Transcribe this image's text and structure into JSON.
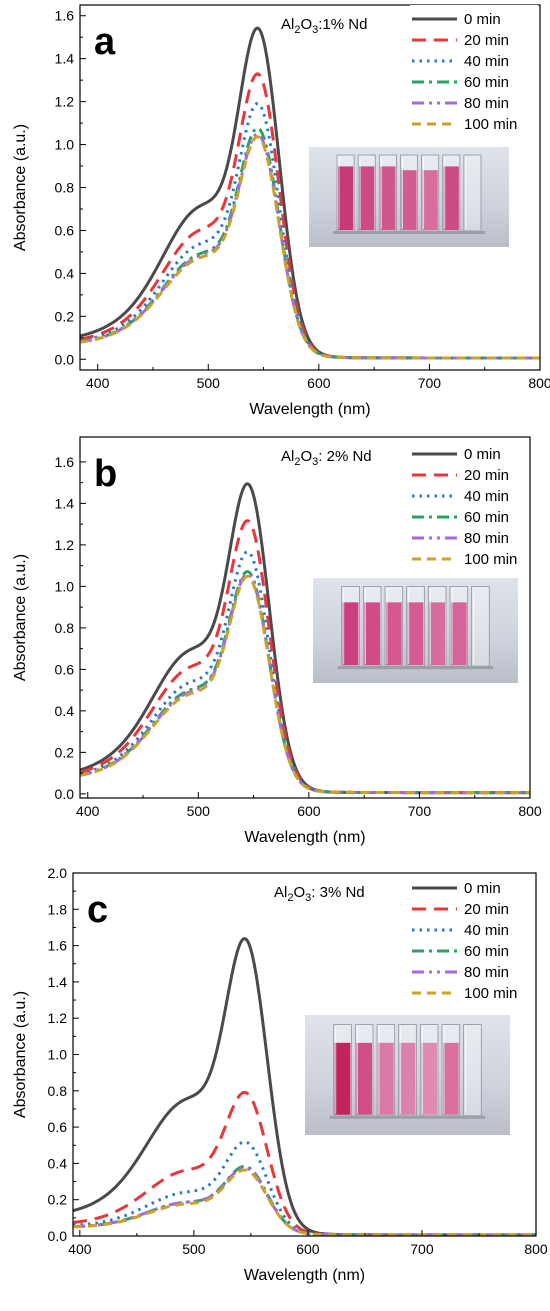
{
  "chart_data": [
    {
      "type": "line",
      "panel_label": "a",
      "title": "Al2O3:1% Nd",
      "title_parts": {
        "pre": "Al",
        "sub1": "2",
        "mid": "O",
        "sub2": "3",
        "post": ":1% Nd"
      },
      "xlabel": "Wavelength (nm)",
      "ylabel": "Absorbance (a.u.)",
      "xlim": [
        384,
        800
      ],
      "ylim": [
        -0.05,
        1.65
      ],
      "xticks": [
        400,
        500,
        600,
        700,
        800
      ],
      "yticks": [
        0.0,
        0.2,
        0.4,
        0.6,
        0.8,
        1.0,
        1.2,
        1.4,
        1.6
      ],
      "ytick_format": 1,
      "legend_position": "top-right",
      "series": [
        {
          "name": "0 min",
          "peak": 1.56,
          "shoulder": 0.76,
          "base": 0.035
        },
        {
          "name": "20 min",
          "peak": 1.35,
          "shoulder": 0.64,
          "base": 0.03
        },
        {
          "name": "40 min",
          "peak": 1.21,
          "shoulder": 0.57,
          "base": 0.03
        },
        {
          "name": "60 min",
          "peak": 1.09,
          "shoulder": 0.52,
          "base": 0.03
        },
        {
          "name": "80 min",
          "peak": 1.06,
          "shoulder": 0.51,
          "base": 0.03
        },
        {
          "name": "100 min",
          "peak": 1.05,
          "shoulder": 0.5,
          "base": 0.03
        }
      ]
    },
    {
      "type": "line",
      "panel_label": "b",
      "title": "Al2O3: 2% Nd",
      "title_parts": {
        "pre": "Al",
        "sub1": "2",
        "mid": "O",
        "sub2": "3",
        "post": ": 2% Nd"
      },
      "xlabel": "Wavelength (nm)",
      "ylabel": "Absorbance (a.u.)",
      "xlim": [
        393,
        800
      ],
      "ylim": [
        -0.02,
        1.72
      ],
      "xticks": [
        400,
        500,
        600,
        700,
        800
      ],
      "yticks": [
        0.0,
        0.2,
        0.4,
        0.6,
        0.8,
        1.0,
        1.2,
        1.4,
        1.6
      ],
      "ytick_format": 1,
      "legend_position": "top-right",
      "series": [
        {
          "name": "0 min",
          "peak": 1.51,
          "shoulder": 0.74,
          "base": 0.03
        },
        {
          "name": "20 min",
          "peak": 1.33,
          "shoulder": 0.65,
          "base": 0.03
        },
        {
          "name": "40 min",
          "peak": 1.18,
          "shoulder": 0.57,
          "base": 0.03
        },
        {
          "name": "60 min",
          "peak": 1.08,
          "shoulder": 0.53,
          "base": 0.03
        },
        {
          "name": "80 min",
          "peak": 1.07,
          "shoulder": 0.52,
          "base": 0.03
        },
        {
          "name": "100 min",
          "peak": 1.06,
          "shoulder": 0.51,
          "base": 0.03
        }
      ]
    },
    {
      "type": "line",
      "panel_label": "c",
      "title": "Al2O3: 3% Nd",
      "title_parts": {
        "pre": "Al",
        "sub1": "2",
        "mid": "O",
        "sub2": "3",
        "post": ": 3% Nd"
      },
      "xlabel": "Wavelength (nm)",
      "ylabel": "Absorbance (a.u.)",
      "xlim": [
        394,
        800
      ],
      "ylim": [
        0.0,
        2.0
      ],
      "xticks": [
        400,
        500,
        600,
        700,
        800
      ],
      "yticks": [
        0.0,
        0.2,
        0.4,
        0.6,
        0.8,
        1.0,
        1.2,
        1.4,
        1.6,
        1.8,
        2.0
      ],
      "ytick_format": 1,
      "legend_position": "top-right",
      "series": [
        {
          "name": "0 min",
          "peak": 1.66,
          "shoulder": 0.8,
          "base": 0.05
        },
        {
          "name": "20 min",
          "peak": 0.8,
          "shoulder": 0.38,
          "base": 0.03
        },
        {
          "name": "40 min",
          "peak": 0.52,
          "shoulder": 0.25,
          "base": 0.03
        },
        {
          "name": "60 min",
          "peak": 0.38,
          "shoulder": 0.19,
          "base": 0.03
        },
        {
          "name": "80 min",
          "peak": 0.37,
          "shoulder": 0.19,
          "base": 0.03
        },
        {
          "name": "100 min",
          "peak": 0.36,
          "shoulder": 0.18,
          "base": 0.03
        }
      ]
    }
  ],
  "series_styles": [
    {
      "color": "#4a4a4a",
      "dash": "none",
      "width": 3.0
    },
    {
      "color": "#e8363a",
      "dash": "14,8",
      "width": 3.0
    },
    {
      "color": "#2a78c8",
      "dash": "2.5,5",
      "width": 3.0
    },
    {
      "color": "#27a263",
      "dash": "12,5,3,5",
      "width": 3.0
    },
    {
      "color": "#a66ad8",
      "dash": "12,5,3,5,3,5",
      "width": 3.0
    },
    {
      "color": "#c9a227",
      "dash": "9,6",
      "width": 3.0
    }
  ],
  "cuvette_photos": [
    {
      "liquid_colors": [
        "#c73a78",
        "#cc4a86",
        "#d0578c",
        "#d25c92",
        "#d66d9c",
        "#cc4a86",
        "#f1f1f3"
      ],
      "levels": [
        0.5,
        0.5,
        0.5,
        0.55,
        0.55,
        0.5,
        0.0
      ]
    },
    {
      "liquid_colors": [
        "#cc3f80",
        "#d04c88",
        "#d4598e",
        "#d45c92",
        "#d86c9c",
        "#d66399",
        "#f3f3f5"
      ],
      "levels": [
        0.55,
        0.55,
        0.55,
        0.55,
        0.55,
        0.55,
        0.0
      ]
    },
    {
      "liquid_colors": [
        "#c2245e",
        "#cf4f87",
        "#db79a6",
        "#dc81ab",
        "#e08cb2",
        "#d9719f",
        "#f4f4f6"
      ],
      "levels": [
        0.55,
        0.55,
        0.55,
        0.55,
        0.55,
        0.55,
        0.0
      ]
    }
  ]
}
